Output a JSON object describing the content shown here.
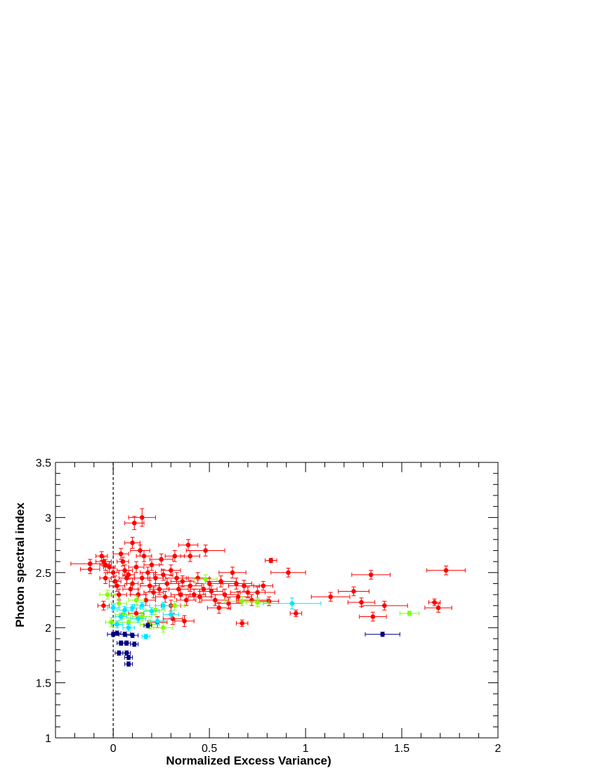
{
  "chart_data": {
    "type": "scatter",
    "title": "",
    "xlabel": "Normalized Excess Variance)",
    "ylabel": "Photon spectral index",
    "xlim": [
      -0.3,
      2.0
    ],
    "ylim": [
      1.0,
      3.5
    ],
    "x_ticks": [
      "0",
      "0.5",
      "1",
      "1.5",
      "2"
    ],
    "y_ticks": [
      "1",
      "1.5",
      "2",
      "2.5",
      "3",
      "3.5"
    ],
    "reference_line": {
      "x": 0,
      "style": "dashed"
    },
    "grid": false,
    "legend": "none",
    "series": [
      {
        "color": "#ff0000",
        "points": [
          [
            -0.12,
            2.58,
            0.1,
            0.04
          ],
          [
            -0.12,
            2.53,
            0.05,
            0.04
          ],
          [
            -0.06,
            2.65,
            0.03,
            0.04
          ],
          [
            -0.05,
            2.6,
            0.04,
            0.04
          ],
          [
            -0.04,
            2.57,
            0.03,
            0.05
          ],
          [
            -0.04,
            2.45,
            0.03,
            0.05
          ],
          [
            -0.05,
            2.2,
            0.03,
            0.04
          ],
          [
            -0.02,
            2.55,
            0.03,
            0.05
          ],
          [
            0.0,
            2.5,
            0.03,
            0.04
          ],
          [
            0.01,
            2.42,
            0.03,
            0.05
          ],
          [
            0.02,
            2.38,
            0.04,
            0.05
          ],
          [
            0.03,
            2.3,
            0.04,
            0.05
          ],
          [
            0.04,
            2.67,
            0.04,
            0.05
          ],
          [
            0.05,
            2.6,
            0.03,
            0.04
          ],
          [
            0.06,
            2.52,
            0.04,
            0.05
          ],
          [
            0.07,
            2.45,
            0.04,
            0.05
          ],
          [
            0.08,
            2.48,
            0.03,
            0.04
          ],
          [
            0.09,
            2.35,
            0.04,
            0.05
          ],
          [
            0.1,
            2.77,
            0.04,
            0.05
          ],
          [
            0.1,
            2.4,
            0.03,
            0.05
          ],
          [
            0.11,
            2.95,
            0.05,
            0.06
          ],
          [
            0.12,
            2.55,
            0.04,
            0.05
          ],
          [
            0.12,
            2.13,
            0.04,
            0.05
          ],
          [
            0.13,
            2.3,
            0.04,
            0.05
          ],
          [
            0.14,
            2.7,
            0.05,
            0.05
          ],
          [
            0.15,
            3.0,
            0.07,
            0.08
          ],
          [
            0.15,
            2.45,
            0.04,
            0.05
          ],
          [
            0.16,
            2.65,
            0.04,
            0.05
          ],
          [
            0.17,
            2.25,
            0.05,
            0.05
          ],
          [
            0.18,
            2.5,
            0.04,
            0.05
          ],
          [
            0.19,
            2.38,
            0.05,
            0.05
          ],
          [
            0.2,
            2.57,
            0.04,
            0.05
          ],
          [
            0.21,
            2.32,
            0.05,
            0.05
          ],
          [
            0.22,
            2.45,
            0.04,
            0.05
          ],
          [
            0.23,
            2.05,
            0.05,
            0.05
          ],
          [
            0.24,
            2.35,
            0.05,
            0.05
          ],
          [
            0.25,
            2.62,
            0.06,
            0.05
          ],
          [
            0.26,
            2.48,
            0.05,
            0.05
          ],
          [
            0.27,
            2.28,
            0.05,
            0.05
          ],
          [
            0.28,
            2.4,
            0.06,
            0.05
          ],
          [
            0.3,
            2.52,
            0.05,
            0.05
          ],
          [
            0.3,
            2.2,
            0.05,
            0.05
          ],
          [
            0.31,
            2.08,
            0.05,
            0.05
          ],
          [
            0.32,
            2.65,
            0.05,
            0.05
          ],
          [
            0.33,
            2.45,
            0.06,
            0.05
          ],
          [
            0.34,
            2.35,
            0.05,
            0.05
          ],
          [
            0.35,
            2.3,
            0.05,
            0.05
          ],
          [
            0.36,
            2.42,
            0.06,
            0.05
          ],
          [
            0.37,
            2.06,
            0.05,
            0.05
          ],
          [
            0.38,
            2.25,
            0.05,
            0.05
          ],
          [
            0.39,
            2.75,
            0.05,
            0.05
          ],
          [
            0.4,
            2.65,
            0.05,
            0.05
          ],
          [
            0.4,
            2.38,
            0.06,
            0.05
          ],
          [
            0.42,
            2.3,
            0.06,
            0.05
          ],
          [
            0.44,
            2.45,
            0.06,
            0.05
          ],
          [
            0.45,
            2.28,
            0.06,
            0.05
          ],
          [
            0.47,
            2.35,
            0.07,
            0.05
          ],
          [
            0.48,
            2.7,
            0.1,
            0.05
          ],
          [
            0.5,
            2.4,
            0.07,
            0.05
          ],
          [
            0.51,
            2.33,
            0.06,
            0.05
          ],
          [
            0.53,
            2.25,
            0.07,
            0.05
          ],
          [
            0.55,
            2.18,
            0.06,
            0.05
          ],
          [
            0.56,
            2.42,
            0.08,
            0.05
          ],
          [
            0.58,
            2.3,
            0.07,
            0.05
          ],
          [
            0.6,
            2.22,
            0.07,
            0.05
          ],
          [
            0.62,
            2.5,
            0.07,
            0.05
          ],
          [
            0.64,
            2.4,
            0.08,
            0.05
          ],
          [
            0.65,
            2.28,
            0.07,
            0.05
          ],
          [
            0.67,
            2.04,
            0.03,
            0.03
          ],
          [
            0.68,
            2.38,
            0.08,
            0.05
          ],
          [
            0.7,
            2.32,
            0.09,
            0.05
          ],
          [
            0.72,
            2.25,
            0.08,
            0.05
          ],
          [
            0.75,
            2.32,
            0.09,
            0.05
          ],
          [
            0.78,
            2.38,
            0.05,
            0.04
          ],
          [
            0.81,
            2.24,
            0.05,
            0.04
          ],
          [
            0.82,
            2.61,
            0.03,
            0.02
          ],
          [
            0.91,
            2.5,
            0.09,
            0.04
          ],
          [
            0.95,
            2.13,
            0.03,
            0.03
          ],
          [
            1.13,
            2.28,
            0.1,
            0.04
          ],
          [
            1.25,
            2.33,
            0.08,
            0.04
          ],
          [
            1.29,
            2.23,
            0.07,
            0.04
          ],
          [
            1.34,
            2.48,
            0.1,
            0.04
          ],
          [
            1.35,
            2.1,
            0.07,
            0.04
          ],
          [
            1.41,
            2.2,
            0.12,
            0.04
          ],
          [
            1.67,
            2.23,
            0.03,
            0.03
          ],
          [
            1.69,
            2.18,
            0.07,
            0.04
          ],
          [
            1.73,
            2.52,
            0.1,
            0.04
          ]
        ]
      },
      {
        "color": "#80ff00",
        "points": [
          [
            -0.03,
            2.3,
            0.04,
            0.04
          ],
          [
            -0.01,
            2.05,
            0.03,
            0.04
          ],
          [
            0.03,
            2.22,
            0.04,
            0.04
          ],
          [
            0.05,
            2.12,
            0.04,
            0.04
          ],
          [
            0.08,
            2.05,
            0.05,
            0.04
          ],
          [
            0.12,
            2.25,
            0.04,
            0.04
          ],
          [
            0.15,
            2.1,
            0.05,
            0.04
          ],
          [
            0.19,
            2.03,
            0.05,
            0.04
          ],
          [
            0.22,
            2.16,
            0.05,
            0.04
          ],
          [
            0.26,
            2.0,
            0.05,
            0.04
          ],
          [
            0.32,
            2.2,
            0.05,
            0.04
          ],
          [
            0.48,
            2.44,
            0.06,
            0.04
          ],
          [
            0.67,
            2.24,
            0.09,
            0.04
          ],
          [
            0.75,
            2.23,
            0.06,
            0.04
          ],
          [
            1.54,
            2.13,
            0.05,
            0.02
          ]
        ]
      },
      {
        "color": "#00e5ff",
        "points": [
          [
            0.0,
            2.18,
            0.03,
            0.03
          ],
          [
            0.02,
            2.03,
            0.03,
            0.03
          ],
          [
            0.04,
            2.1,
            0.03,
            0.03
          ],
          [
            0.06,
            2.16,
            0.04,
            0.03
          ],
          [
            0.08,
            2.0,
            0.03,
            0.03
          ],
          [
            0.1,
            2.18,
            0.04,
            0.03
          ],
          [
            0.13,
            2.08,
            0.04,
            0.03
          ],
          [
            0.15,
            2.2,
            0.04,
            0.03
          ],
          [
            0.17,
            1.92,
            0.02,
            0.02
          ],
          [
            0.2,
            2.15,
            0.04,
            0.03
          ],
          [
            0.23,
            2.06,
            0.04,
            0.03
          ],
          [
            0.26,
            2.2,
            0.04,
            0.03
          ],
          [
            0.3,
            2.12,
            0.04,
            0.03
          ],
          [
            0.93,
            2.22,
            0.15,
            0.05
          ]
        ]
      },
      {
        "color": "#000080",
        "points": [
          [
            0.0,
            1.94,
            0.03,
            0.02
          ],
          [
            0.02,
            1.95,
            0.02,
            0.02
          ],
          [
            0.03,
            1.77,
            0.02,
            0.02
          ],
          [
            0.04,
            1.86,
            0.02,
            0.02
          ],
          [
            0.06,
            1.94,
            0.03,
            0.02
          ],
          [
            0.07,
            1.77,
            0.02,
            0.02
          ],
          [
            0.07,
            1.86,
            0.02,
            0.02
          ],
          [
            0.08,
            1.73,
            0.02,
            0.02
          ],
          [
            0.08,
            1.67,
            0.02,
            0.02
          ],
          [
            0.1,
            1.93,
            0.03,
            0.02
          ],
          [
            0.11,
            1.85,
            0.02,
            0.02
          ],
          [
            0.18,
            2.02,
            0.02,
            0.02
          ],
          [
            1.4,
            1.94,
            0.09,
            0.02
          ]
        ]
      }
    ]
  }
}
